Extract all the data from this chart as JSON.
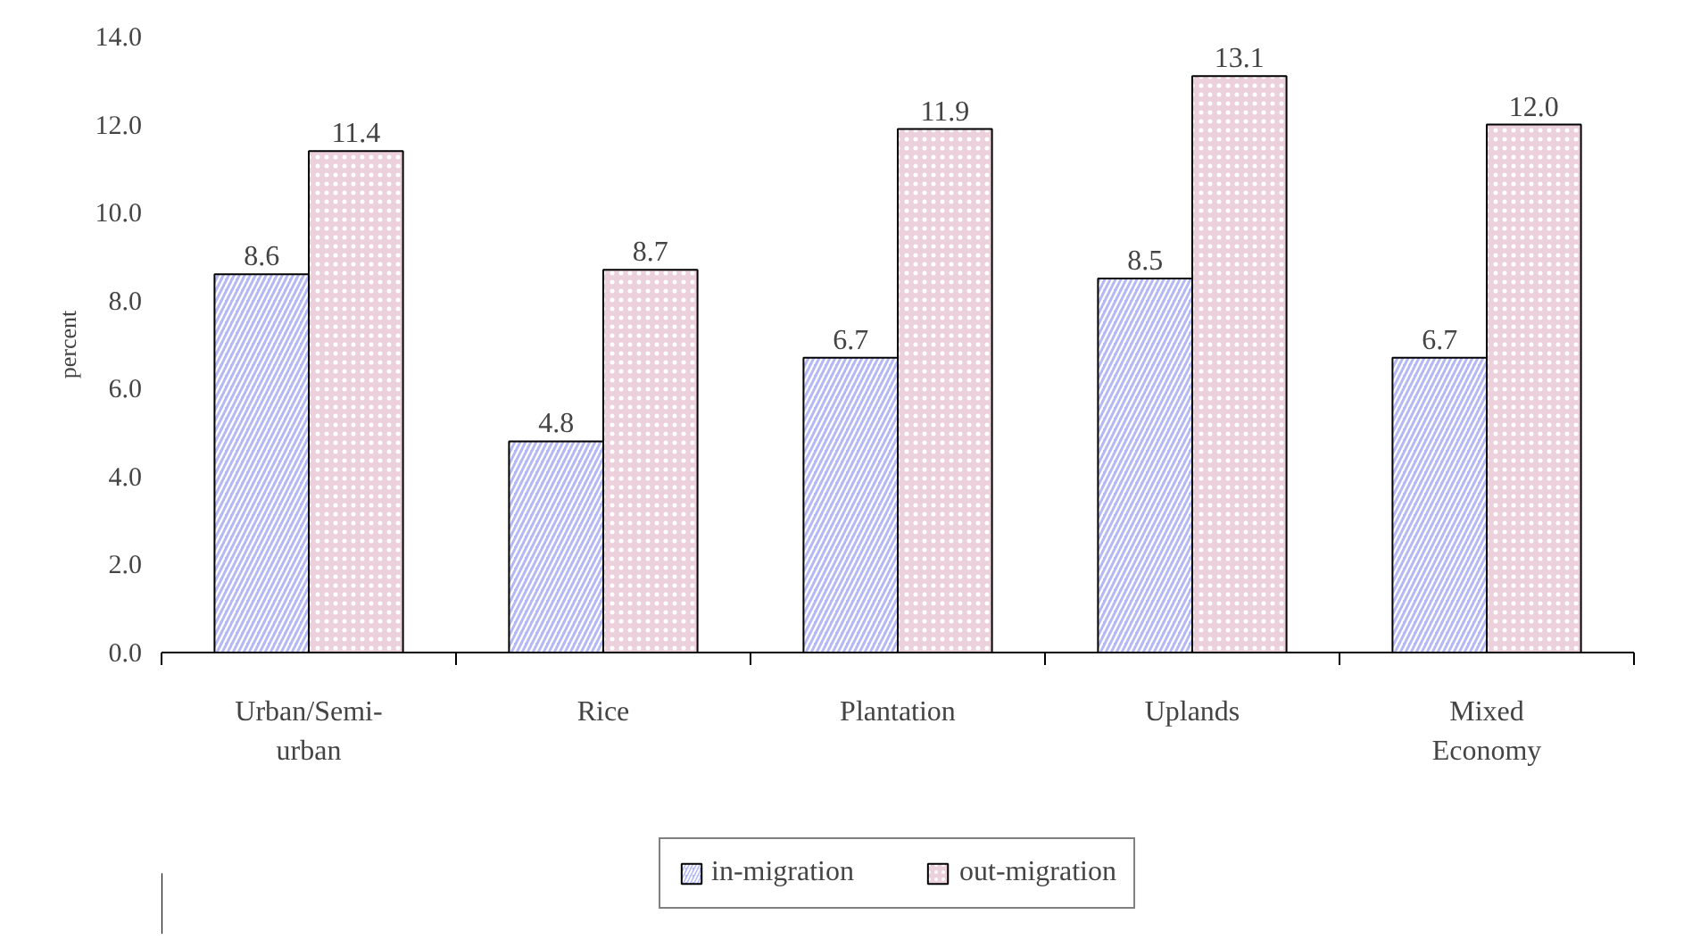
{
  "chart_data": {
    "type": "bar",
    "ylabel": "percent",
    "categories": [
      "Urban/Semi-urban",
      "Rice",
      "Plantation",
      "Uplands",
      "Mixed Economy"
    ],
    "series": [
      {
        "name": "in-migration",
        "color": "#b4b8f4",
        "values": [
          8.6,
          4.8,
          6.7,
          8.5,
          6.7
        ],
        "value_labels": [
          "8.6",
          "4.8",
          "6.7",
          "8.5",
          "6.7"
        ]
      },
      {
        "name": "out-migration",
        "color": "#ecd0dc",
        "values": [
          11.4,
          8.7,
          11.9,
          13.1,
          12.0
        ],
        "value_labels": [
          "11.4",
          "8.7",
          "11.9",
          "13.1",
          "12.0"
        ]
      }
    ],
    "ylim": [
      0,
      14
    ],
    "yticks": [
      {
        "value": 0,
        "label": "0.0"
      },
      {
        "value": 2,
        "label": "2.0"
      },
      {
        "value": 4,
        "label": "4.0"
      },
      {
        "value": 6,
        "label": "6.0"
      },
      {
        "value": 8,
        "label": "8.0"
      },
      {
        "value": 10,
        "label": "10.0"
      },
      {
        "value": 12,
        "label": "12.0"
      },
      {
        "value": 14,
        "label": "14.0"
      }
    ],
    "grid": false,
    "legend": "bottom"
  }
}
